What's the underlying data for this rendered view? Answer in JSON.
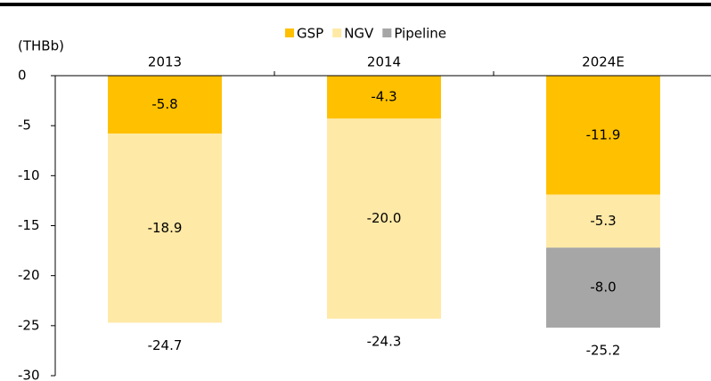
{
  "chart_data": {
    "type": "stacked_bar",
    "unit_label": "(THBb)",
    "categories": [
      "2013",
      "2014",
      "2024E"
    ],
    "series": [
      {
        "name": "GSP",
        "color": "#ffc000",
        "values": [
          -5.8,
          -4.3,
          -11.9
        ],
        "value_labels": [
          "-5.8",
          "-4.3",
          "-11.9"
        ]
      },
      {
        "name": "NGV",
        "color": "#ffe9a6",
        "values": [
          -18.9,
          -20.0,
          -5.3
        ],
        "value_labels": [
          "-18.9",
          "-20.0",
          "-5.3"
        ]
      },
      {
        "name": "Pipeline",
        "color": "#a6a6a6",
        "values": [
          null,
          null,
          -8.0
        ],
        "value_labels": [
          null,
          null,
          "-8.0"
        ]
      }
    ],
    "totals": [
      -24.7,
      -24.3,
      -25.2
    ],
    "ylim": [
      -30,
      0
    ],
    "yticks": [
      0,
      -5,
      -10,
      -15,
      -20,
      -25,
      -30
    ],
    "legend": "top"
  }
}
